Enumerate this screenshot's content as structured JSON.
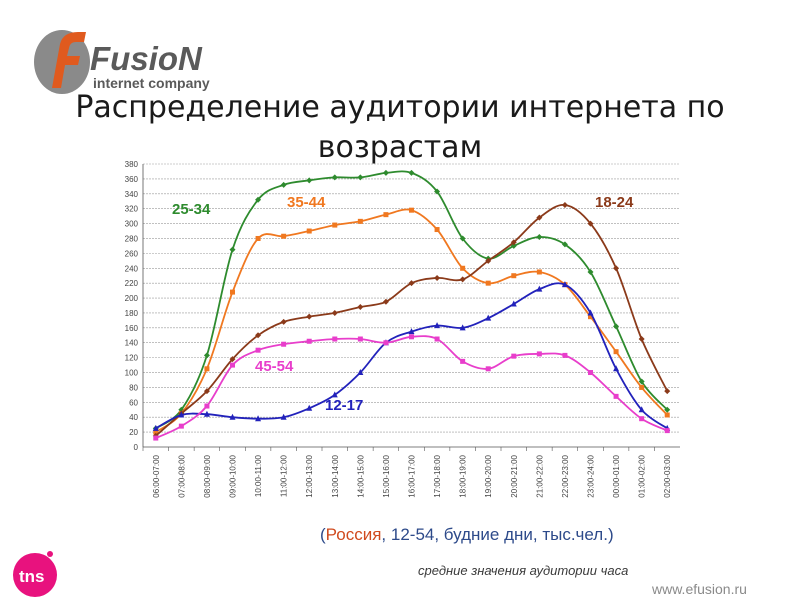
{
  "logo": {
    "brand": "FusioN",
    "tagline": "internet company"
  },
  "title": "Распределение аудитории интернета по возрастам",
  "subtitle": {
    "open": "(",
    "country": "Россия",
    "rest": ", 12-54, будние дни, тыс.чел.)"
  },
  "note": "средние значения аудитории часа",
  "website": "www.efusion.ru",
  "tns_logo": "tns",
  "chart_data": {
    "type": "line",
    "title": "",
    "xlabel": "",
    "ylabel": "",
    "ylim": [
      0,
      380
    ],
    "yticks": [
      0,
      20,
      40,
      60,
      80,
      100,
      120,
      140,
      160,
      180,
      200,
      220,
      240,
      260,
      280,
      300,
      320,
      340,
      360,
      380
    ],
    "grid": true,
    "categories": [
      "06:00-07:00",
      "07:00-08:00",
      "08:00-09:00",
      "09:00-10:00",
      "10:00-11:00",
      "11:00-12:00",
      "12:00-13:00",
      "13:00-14:00",
      "14:00-15:00",
      "15:00-16:00",
      "16:00-17:00",
      "17:00-18:00",
      "18:00-19:00",
      "19:00-20:00",
      "20:00-21:00",
      "21:00-22:00",
      "22:00-23:00",
      "23:00-24:00",
      "00:00-01:00",
      "01:00-02:00",
      "02:00-03:00"
    ],
    "series": [
      {
        "name": "25-34",
        "color": "#2e8b2e",
        "marker": "diamond",
        "values": [
          25,
          50,
          123,
          265,
          332,
          352,
          358,
          362,
          362,
          368,
          368,
          343,
          280,
          253,
          270,
          282,
          272,
          235,
          162,
          88,
          50
        ]
      },
      {
        "name": "35-44",
        "color": "#f07820",
        "marker": "square",
        "values": [
          20,
          45,
          105,
          208,
          280,
          283,
          290,
          298,
          303,
          312,
          318,
          292,
          240,
          220,
          230,
          235,
          218,
          175,
          128,
          80,
          43
        ]
      },
      {
        "name": "18-24",
        "color": "#8b3a1a",
        "marker": "diamond",
        "values": [
          15,
          45,
          75,
          118,
          150,
          168,
          175,
          180,
          188,
          195,
          220,
          227,
          225,
          250,
          275,
          308,
          325,
          300,
          240,
          145,
          75
        ]
      },
      {
        "name": "12-17",
        "color": "#2222bb",
        "marker": "triangle",
        "values": [
          25,
          43,
          44,
          40,
          38,
          40,
          52,
          70,
          100,
          140,
          155,
          163,
          160,
          173,
          192,
          212,
          218,
          180,
          105,
          50,
          25
        ]
      },
      {
        "name": "45-54",
        "color": "#e83ecb",
        "marker": "square",
        "values": [
          12,
          28,
          55,
          110,
          130,
          138,
          142,
          145,
          145,
          140,
          148,
          145,
          115,
          105,
          122,
          125,
          123,
          100,
          68,
          38,
          22
        ]
      }
    ]
  }
}
